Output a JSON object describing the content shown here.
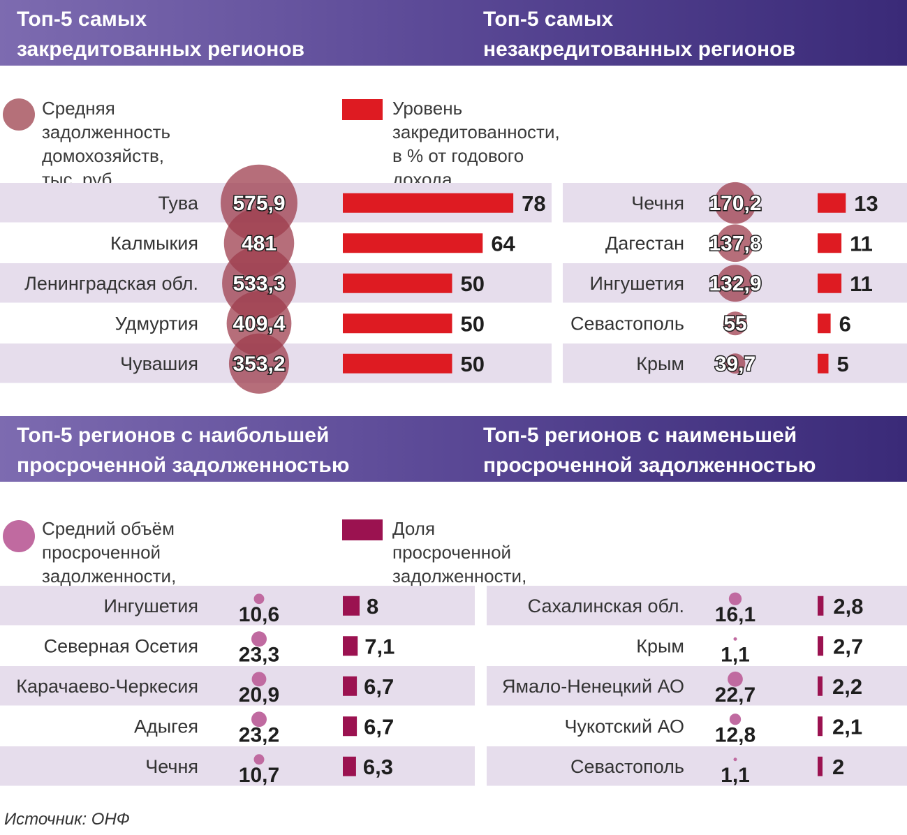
{
  "banners": {
    "top_left": "Топ-5 самых\nзакредитованных регионов",
    "top_right": "Топ-5 самых\nнезакредитованных регионов",
    "bottom_left": "Топ-5 регионов с наибольшей\nпросроченной задолженностью",
    "bottom_right": "Топ-5 регионов с наименьшей\nпросроченной задолженностью"
  },
  "legends": {
    "debt_circle": "Средняя задолженность\nдомохозяйств, тыс. руб.",
    "debt_bar": "Уровень закредитованности,\nв % от годового дохода",
    "overdue_circle": "Средний объём просроченной\nзадолженности, тыс. руб.",
    "overdue_bar": "Доля просроченной\nзадолженности, %"
  },
  "source": "Источник: ОНФ",
  "colors": {
    "banner_start": "#7d6bb0",
    "banner_end": "#3a2a78",
    "debt_circle": "#9e3d4e",
    "debt_circle_legend": "#b57079",
    "debt_bar": "#de1b22",
    "overdue_circle": "#c06aa0",
    "overdue_bar": "#9b1250",
    "row_band": "#e6ddec"
  },
  "chart_data": [
    {
      "type": "bar",
      "id": "most_credited",
      "title": "Топ-5 самых закредитованных регионов",
      "categories": [
        "Тува",
        "Калмыкия",
        "Ленинградская обл.",
        "Удмуртия",
        "Чувашия"
      ],
      "series": [
        {
          "name": "Средняя задолженность домохозяйств, тыс. руб.",
          "values": [
            "575,9",
            "481",
            "533,3",
            "409,4",
            "353,2"
          ]
        },
        {
          "name": "Уровень закредитованности, в % от годового дохода",
          "values": [
            "78",
            "64",
            "50",
            "50",
            "50"
          ]
        }
      ]
    },
    {
      "type": "bar",
      "id": "least_credited",
      "title": "Топ-5 самых незакредитованных регионов",
      "categories": [
        "Чечня",
        "Дагестан",
        "Ингушетия",
        "Севастополь",
        "Крым"
      ],
      "series": [
        {
          "name": "Средняя задолженность домохозяйств, тыс. руб.",
          "values": [
            "170,2",
            "137,8",
            "132,9",
            "55",
            "39,7"
          ]
        },
        {
          "name": "Уровень закредитованности, в % от годового дохода",
          "values": [
            "13",
            "11",
            "11",
            "6",
            "5"
          ]
        }
      ]
    },
    {
      "type": "bar",
      "id": "most_overdue",
      "title": "Топ-5 регионов с наибольшей просроченной задолженностью",
      "categories": [
        "Ингушетия",
        "Северная Осетия",
        "Карачаево-Черкесия",
        "Адыгея",
        "Чечня"
      ],
      "series": [
        {
          "name": "Средний объём просроченной задолженности, тыс. руб.",
          "values": [
            "10,6",
            "23,3",
            "20,9",
            "23,2",
            "10,7"
          ]
        },
        {
          "name": "Доля просроченной задолженности, %",
          "values": [
            "8",
            "7,1",
            "6,7",
            "6,7",
            "6,3"
          ]
        }
      ]
    },
    {
      "type": "bar",
      "id": "least_overdue",
      "title": "Топ-5 регионов с наименьшей просроченной задолженностью",
      "categories": [
        "Сахалинская обл.",
        "Крым",
        "Ямало-Ненецкий АО",
        "Чукотский АО",
        "Севастополь"
      ],
      "series": [
        {
          "name": "Средний объём просроченной задолженности, тыс. руб.",
          "values": [
            "16,1",
            "1,1",
            "22,7",
            "12,8",
            "1,1"
          ]
        },
        {
          "name": "Доля просроченной задолженности, %",
          "values": [
            "2,8",
            "2,7",
            "2,2",
            "2,1",
            "2"
          ]
        }
      ]
    }
  ]
}
